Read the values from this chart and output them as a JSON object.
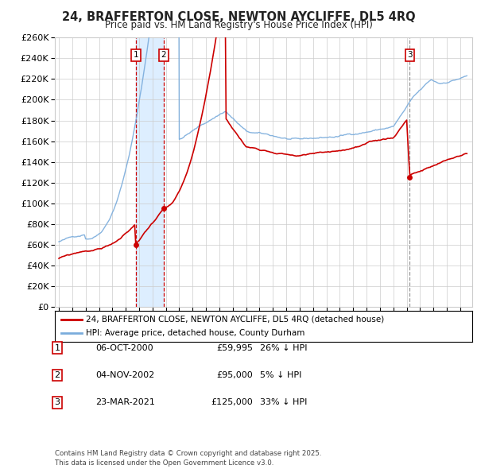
{
  "title": "24, BRAFFERTON CLOSE, NEWTON AYCLIFFE, DL5 4RQ",
  "subtitle": "Price paid vs. HM Land Registry's House Price Index (HPI)",
  "legend_line1": "24, BRAFFERTON CLOSE, NEWTON AYCLIFFE, DL5 4RQ (detached house)",
  "legend_line2": "HPI: Average price, detached house, County Durham",
  "footer": "Contains HM Land Registry data © Crown copyright and database right 2025.\nThis data is licensed under the Open Government Licence v3.0.",
  "transactions": [
    {
      "num": 1,
      "date": "06-OCT-2000",
      "price": 59995,
      "hpi_diff": "26% ↓ HPI",
      "x": 2000.76
    },
    {
      "num": 2,
      "date": "04-NOV-2002",
      "price": 95000,
      "hpi_diff": "5% ↓ HPI",
      "x": 2002.84
    },
    {
      "num": 3,
      "date": "23-MAR-2021",
      "price": 125000,
      "hpi_diff": "33% ↓ HPI",
      "x": 2021.22
    }
  ],
  "sale_color": "#cc0000",
  "hpi_color": "#7aacdc",
  "shade_color": "#ddeeff",
  "vline_color": "#cc0000",
  "vline3_color": "#999999",
  "ylim": [
    0,
    260000
  ],
  "xlim_start": 1994.7,
  "xlim_end": 2025.9,
  "ytick_step": 20000,
  "background_color": "#ffffff",
  "grid_color": "#cccccc"
}
